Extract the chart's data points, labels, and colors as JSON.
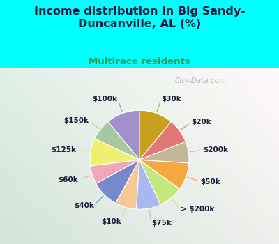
{
  "title": "Income distribution in Big Sandy-\nDuncanville, AL (%)",
  "subtitle": "Multirace residents",
  "watermark": "City-Data.com",
  "labels": [
    "$100k",
    "$150k",
    "$125k",
    "$60k",
    "$40k",
    "$10k",
    "$75k",
    "> $200k",
    "$50k",
    "$200k",
    "$20k",
    "$30k"
  ],
  "values": [
    11,
    7,
    9,
    6,
    9,
    7,
    8,
    8,
    9,
    7,
    8,
    11
  ],
  "colors": [
    "#a090cc",
    "#aac8a0",
    "#f0f070",
    "#f0a8b8",
    "#7888cc",
    "#f8c898",
    "#a8b8f0",
    "#c4e880",
    "#f8a840",
    "#c0b898",
    "#e07878",
    "#c8a020"
  ],
  "background_cyan": "#00ffff",
  "background_chart_tl": "#e0f0f0",
  "background_chart_br": "#c8e8d0",
  "title_color": "#1a1a3a",
  "subtitle_color": "#2a9a50",
  "label_color": "#1a1a3a",
  "label_fontsize": 7.5,
  "title_fontsize": 11.5
}
